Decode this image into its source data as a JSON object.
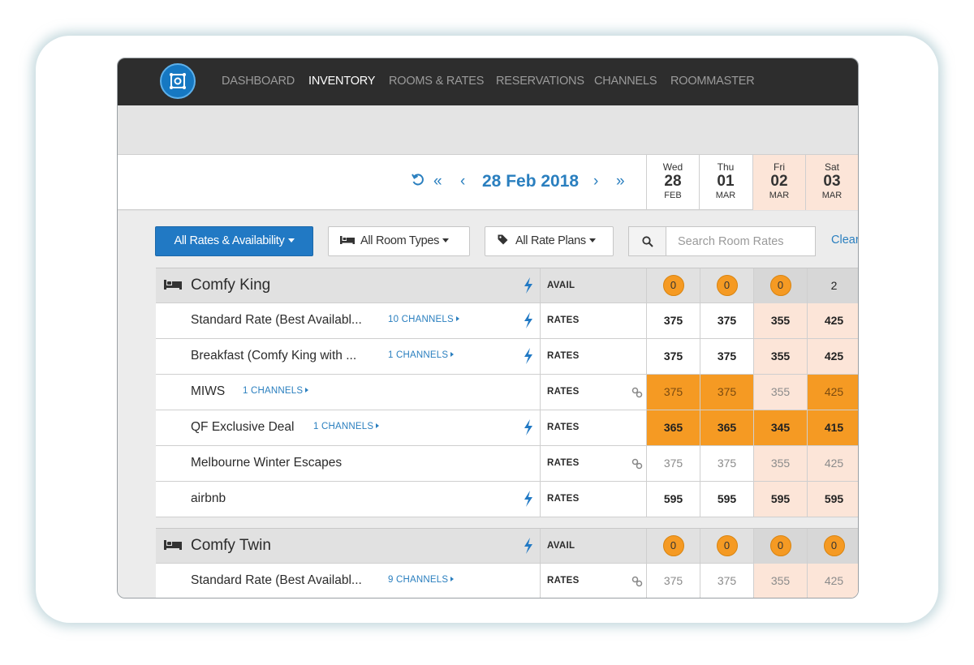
{
  "nav": {
    "items": [
      {
        "label": "DASHBOARD",
        "active": false
      },
      {
        "label": "INVENTORY",
        "active": true
      },
      {
        "label": "ROOMS & RATES",
        "active": false
      },
      {
        "label": "RESERVATIONS",
        "active": false
      },
      {
        "label": "CHANNELS",
        "active": false
      },
      {
        "label": "ROOMMASTER",
        "active": false
      }
    ]
  },
  "date_nav": {
    "refresh_icon": "refresh-icon",
    "first_icon": "double-chevron-left-icon",
    "prev_icon": "chevron-left-icon",
    "current": "28 Feb 2018",
    "next_icon": "chevron-right-icon",
    "last_icon": "double-chevron-right-icon"
  },
  "days": [
    {
      "name": "Wed",
      "num": "28",
      "month": "FEB",
      "weekend": false
    },
    {
      "name": "Thu",
      "num": "01",
      "month": "MAR",
      "weekend": false
    },
    {
      "name": "Fri",
      "num": "02",
      "month": "MAR",
      "weekend": true
    },
    {
      "name": "Sat",
      "num": "03",
      "month": "MAR",
      "weekend": true
    }
  ],
  "filters": {
    "rates_availability": "All Rates & Availability",
    "room_types": "All Room Types",
    "rate_plans": "All Rate Plans",
    "search_placeholder": "Search Room Rates",
    "clear": "Clear"
  },
  "groups": [
    {
      "name": "Comfy King",
      "avail_label": "AVAIL",
      "avail": [
        {
          "v": "0",
          "badge": true
        },
        {
          "v": "0",
          "badge": true
        },
        {
          "v": "0",
          "badge": true
        },
        {
          "v": "2",
          "badge": false
        }
      ],
      "rates": [
        {
          "name": "Standard Rate (Best Availabl...",
          "channels": "10 CHANNELS",
          "bolt": true,
          "link": false,
          "type": "RATES",
          "values": [
            "375",
            "375",
            "355",
            "425"
          ],
          "style": [
            "bold",
            "bold",
            "bold",
            "bold"
          ]
        },
        {
          "name": "Breakfast (Comfy King with ...",
          "channels": "1 CHANNELS",
          "bolt": true,
          "link": false,
          "type": "RATES",
          "values": [
            "375",
            "375",
            "355",
            "425"
          ],
          "style": [
            "bold",
            "bold",
            "bold",
            "bold"
          ]
        },
        {
          "name": "MIWS",
          "channels": "1 CHANNELS",
          "bolt": false,
          "link": true,
          "type": "RATES",
          "values": [
            "375",
            "375",
            "355",
            "425"
          ],
          "style": [
            "orange-muted",
            "orange-muted",
            "muted",
            "orange-muted"
          ]
        },
        {
          "name": "QF Exclusive Deal",
          "channels": "1 CHANNELS",
          "bolt": true,
          "link": false,
          "type": "RATES",
          "values": [
            "365",
            "365",
            "345",
            "415"
          ],
          "style": [
            "orange-bold",
            "orange-bold",
            "orange-bold",
            "orange-bold"
          ]
        },
        {
          "name": "Melbourne Winter Escapes",
          "channels": "",
          "bolt": false,
          "link": true,
          "type": "RATES",
          "values": [
            "375",
            "375",
            "355",
            "425"
          ],
          "style": [
            "muted",
            "muted",
            "muted",
            "muted"
          ]
        },
        {
          "name": "airbnb",
          "channels": "",
          "bolt": true,
          "link": false,
          "type": "RATES",
          "values": [
            "595",
            "595",
            "595",
            "595"
          ],
          "style": [
            "bold",
            "bold",
            "bold",
            "bold"
          ]
        }
      ]
    },
    {
      "name": "Comfy Twin",
      "avail_label": "AVAIL",
      "avail": [
        {
          "v": "0",
          "badge": true
        },
        {
          "v": "0",
          "badge": true
        },
        {
          "v": "0",
          "badge": true
        },
        {
          "v": "0",
          "badge": true
        }
      ],
      "rates": [
        {
          "name": "Standard Rate (Best Availabl...",
          "channels": "9 CHANNELS",
          "bolt": false,
          "link": true,
          "type": "RATES",
          "values": [
            "375",
            "375",
            "355",
            "425"
          ],
          "style": [
            "muted",
            "muted",
            "muted",
            "muted"
          ]
        }
      ]
    }
  ],
  "colors": {
    "nav_bg": "#2d2d2d",
    "brand_blue": "#2179c4",
    "link_blue": "#2a7fbf",
    "highlight_orange": "#f59a23",
    "weekend_bg": "#fce5d8"
  }
}
